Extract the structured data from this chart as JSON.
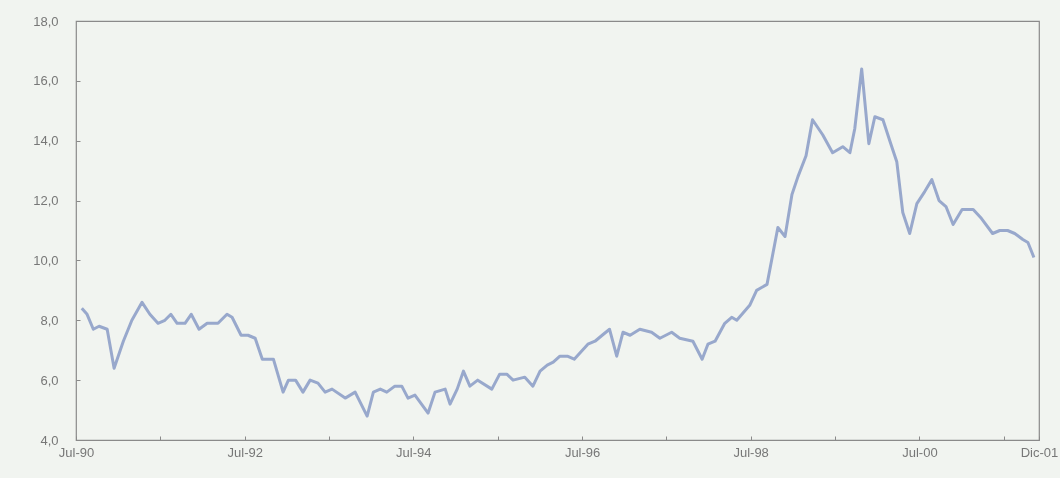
{
  "chart_data": {
    "type": "line",
    "x": [
      "1990-07-26",
      "1990-08-18",
      "1990-09-14",
      "1990-10-09",
      "1990-11-13",
      "1990-12-13",
      "1991-01-22",
      "1991-02-28",
      "1991-04-13",
      "1991-05-17",
      "1991-06-21",
      "1991-07-21",
      "1991-08-16",
      "1991-09-12",
      "1991-10-16",
      "1991-11-12",
      "1991-12-16",
      "1992-01-20",
      "1992-03-07",
      "1992-04-15",
      "1992-05-07",
      "1992-06-15",
      "1992-07-15",
      "1992-08-15",
      "1992-09-15",
      "1992-11-02",
      "1992-12-14",
      "1993-01-06",
      "1993-02-06",
      "1993-03-10",
      "1993-04-10",
      "1993-05-14",
      "1993-06-14",
      "1993-07-14",
      "1993-09-09",
      "1993-10-22",
      "1993-12-13",
      "1994-01-09",
      "1994-02-08",
      "1994-03-08",
      "1994-04-12",
      "1994-05-12",
      "1994-06-08",
      "1994-07-08",
      "1994-09-03",
      "1994-10-03",
      "1994-11-16",
      "1994-12-07",
      "1995-01-07",
      "1995-02-03",
      "1995-03-03",
      "1995-04-06",
      "1995-06-06",
      "1995-07-10",
      "1995-08-10",
      "1995-09-06",
      "1995-10-27",
      "1995-12-01",
      "1996-01-01",
      "1996-02-01",
      "1996-02-27",
      "1996-03-27",
      "1996-04-28",
      "1996-05-28",
      "1996-07-26",
      "1996-08-26",
      "1996-09-26",
      "1996-10-28",
      "1996-11-28",
      "1996-12-25",
      "1997-01-25",
      "1997-03-08",
      "1997-04-28",
      "1997-06-03",
      "1997-07-24",
      "1997-08-28",
      "1997-10-24",
      "1997-12-03",
      "1997-12-28",
      "1998-01-28",
      "1998-03-11",
      "1998-04-10",
      "1998-05-02",
      "1998-06-27",
      "1998-07-27",
      "1998-09-10",
      "1998-10-27",
      "1998-11-27",
      "1998-12-27",
      "1999-01-22",
      "1999-02-26",
      "1999-03-26",
      "1999-05-09",
      "1999-06-21",
      "1999-08-04",
      "1999-09-04",
      "1999-09-25",
      "1999-10-25",
      "1999-11-25",
      "1999-12-21",
      "2000-01-25",
      "2000-02-28",
      "2000-03-25",
      "2000-04-20",
      "2000-05-20",
      "2000-06-20",
      "2000-07-24",
      "2000-08-24",
      "2000-09-24",
      "2000-10-24",
      "2000-11-24",
      "2001-01-02",
      "2001-02-19",
      "2001-03-27",
      "2001-05-14",
      "2001-06-14",
      "2001-07-18",
      "2001-08-18",
      "2001-09-22",
      "2001-10-14",
      "2001-11-09"
    ],
    "series": [
      {
        "color": "#98a8cc",
        "values": [
          8.4,
          8.2,
          7.7,
          7.8,
          7.7,
          6.4,
          7.3,
          8.0,
          8.6,
          8.2,
          7.9,
          8.0,
          8.2,
          7.9,
          7.9,
          8.2,
          7.7,
          7.9,
          7.9,
          8.2,
          8.1,
          7.5,
          7.5,
          7.4,
          6.7,
          6.7,
          5.6,
          6.0,
          6.0,
          5.6,
          6.0,
          5.9,
          5.6,
          5.7,
          5.4,
          5.6,
          4.8,
          5.6,
          5.7,
          5.6,
          5.8,
          5.8,
          5.4,
          5.5,
          4.9,
          5.6,
          5.7,
          5.2,
          5.7,
          6.3,
          5.8,
          6.0,
          5.7,
          6.2,
          6.2,
          6.0,
          6.1,
          5.8,
          6.3,
          6.5,
          6.6,
          6.8,
          6.8,
          6.7,
          7.2,
          7.3,
          7.5,
          7.7,
          6.8,
          7.6,
          7.5,
          7.7,
          7.6,
          7.4,
          7.6,
          7.4,
          7.3,
          6.7,
          7.2,
          7.3,
          7.9,
          8.1,
          8.0,
          8.5,
          9.0,
          9.2,
          11.1,
          10.8,
          12.2,
          12.8,
          13.5,
          14.7,
          14.2,
          13.6,
          13.8,
          13.6,
          14.4,
          16.4,
          13.9,
          14.8,
          14.7,
          13.9,
          13.3,
          11.6,
          10.9,
          11.9,
          12.3,
          12.7,
          12.0,
          11.8,
          11.2,
          11.7,
          11.7,
          11.4,
          10.9,
          11.0,
          11.0,
          10.9,
          10.7,
          10.6,
          10.1
        ]
      }
    ],
    "xlim": [
      "1990-07",
      "2001-12"
    ],
    "xticks": [
      {
        "value": "1990-07",
        "label": "Jul-90"
      },
      {
        "value": "1991-07",
        "label": null
      },
      {
        "value": "1992-07",
        "label": "Jul-92"
      },
      {
        "value": "1993-07",
        "label": null
      },
      {
        "value": "1994-07",
        "label": "Jul-94"
      },
      {
        "value": "1995-07",
        "label": null
      },
      {
        "value": "1996-07",
        "label": "Jul-96"
      },
      {
        "value": "1997-07",
        "label": null
      },
      {
        "value": "1998-07",
        "label": "Jul-98"
      },
      {
        "value": "1999-07",
        "label": null
      },
      {
        "value": "2000-07",
        "label": "Jul-00"
      },
      {
        "value": "2001-07",
        "label": null
      },
      {
        "value": "2001-12",
        "label": "Dic-01"
      }
    ],
    "ylim": [
      4,
      18
    ],
    "yticks": [
      {
        "value": 4,
        "label": "4,0"
      },
      {
        "value": 6,
        "label": "6,0"
      },
      {
        "value": 8,
        "label": "8,0"
      },
      {
        "value": 10,
        "label": "10,0"
      },
      {
        "value": 12,
        "label": "12,0"
      },
      {
        "value": 14,
        "label": "14,0"
      },
      {
        "value": 16,
        "label": "16,0"
      },
      {
        "value": 18,
        "label": "18,0"
      }
    ],
    "marker": "none",
    "line_style": "solid",
    "grid": false,
    "legend": false
  }
}
